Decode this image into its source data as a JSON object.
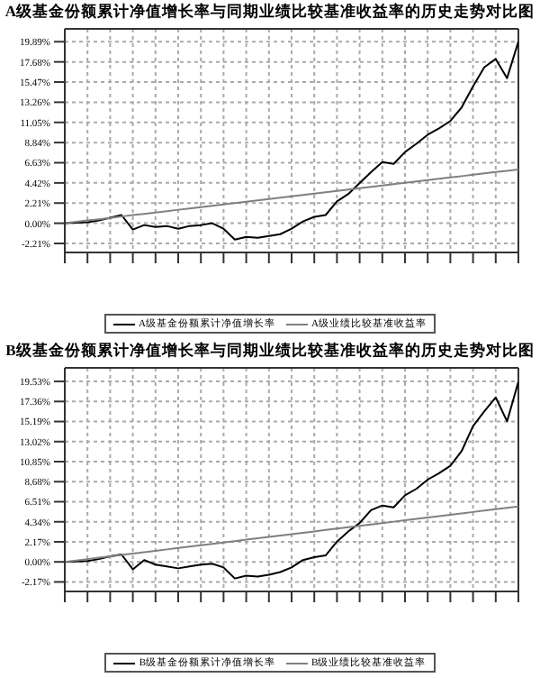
{
  "chart_data": [
    {
      "type": "line",
      "title": "A级基金份额累计净值增长率与同期业绩比较基准收益率的历史走势对比图",
      "categories": [
        null,
        null,
        null,
        null,
        null,
        null,
        null,
        null,
        null,
        null,
        null,
        null,
        null,
        null,
        null,
        null,
        null,
        null,
        null,
        null,
        null,
        null,
        null,
        null,
        null,
        null,
        null,
        null,
        null,
        null,
        null,
        null,
        null,
        null,
        null,
        null,
        null,
        null,
        null,
        null,
        null
      ],
      "ylim": [
        -3.2,
        21.3
      ],
      "yticks": [
        {
          "value": -2.21,
          "label": "-2.21%"
        },
        {
          "value": 0,
          "label": "0.00%"
        },
        {
          "value": 2.21,
          "label": "2.21%"
        },
        {
          "value": 4.42,
          "label": "4.42%"
        },
        {
          "value": 6.63,
          "label": "6.63%"
        },
        {
          "value": 8.84,
          "label": "8.84%"
        },
        {
          "value": 11.05,
          "label": "11.05%"
        },
        {
          "value": 13.26,
          "label": "13.26%"
        },
        {
          "value": 15.47,
          "label": "15.47%"
        },
        {
          "value": 17.68,
          "label": "17.68%"
        },
        {
          "value": 19.89,
          "label": "19.89%"
        }
      ],
      "grid": true,
      "legend": "bottom",
      "series": [
        {
          "name": "A级基金份额累计净值增长率",
          "color": "#000000",
          "values": [
            0,
            0.05,
            0.1,
            0.3,
            0.6,
            0.9,
            -0.7,
            -0.2,
            -0.4,
            -0.3,
            -0.6,
            -0.3,
            -0.2,
            0,
            -0.6,
            -1.8,
            -1.5,
            -1.6,
            -1.4,
            -1.2,
            -0.6,
            0.2,
            0.7,
            0.9,
            2.4,
            3.2,
            4.4,
            5.6,
            6.7,
            6.5,
            7.8,
            8.7,
            9.7,
            10.4,
            11.2,
            12.7,
            15,
            17.1,
            18,
            15.9,
            19.9
          ]
        },
        {
          "name": "A级业绩比较基准收益率",
          "color": "#808080",
          "values": [
            0,
            0.15,
            0.3,
            0.44,
            0.59,
            0.74,
            0.89,
            1.03,
            1.18,
            1.33,
            1.48,
            1.62,
            1.77,
            1.92,
            2.07,
            2.21,
            2.36,
            2.51,
            2.66,
            2.8,
            2.95,
            3.1,
            3.25,
            3.39,
            3.54,
            3.69,
            3.84,
            3.98,
            4.13,
            4.28,
            4.43,
            4.57,
            4.72,
            4.87,
            5.02,
            5.16,
            5.31,
            5.46,
            5.61,
            5.75,
            5.9
          ]
        }
      ]
    },
    {
      "type": "line",
      "title": "B级基金份额累计净值增长率与同期业绩比较基准收益率的历史走势对比图",
      "categories": [
        null,
        null,
        null,
        null,
        null,
        null,
        null,
        null,
        null,
        null,
        null,
        null,
        null,
        null,
        null,
        null,
        null,
        null,
        null,
        null,
        null,
        null,
        null,
        null,
        null,
        null,
        null,
        null,
        null,
        null,
        null,
        null,
        null,
        null,
        null,
        null,
        null,
        null,
        null,
        null,
        null
      ],
      "ylim": [
        -3.2,
        21
      ],
      "yticks": [
        {
          "value": -2.17,
          "label": "-2.17%"
        },
        {
          "value": 0,
          "label": "0.00%"
        },
        {
          "value": 2.17,
          "label": "2.17%"
        },
        {
          "value": 4.34,
          "label": "4.34%"
        },
        {
          "value": 6.51,
          "label": "6.51%"
        },
        {
          "value": 8.68,
          "label": "8.68%"
        },
        {
          "value": 10.85,
          "label": "10.85%"
        },
        {
          "value": 13.02,
          "label": "13.02%"
        },
        {
          "value": 15.19,
          "label": "15.19%"
        },
        {
          "value": 17.36,
          "label": "17.36%"
        },
        {
          "value": 19.53,
          "label": "19.53%"
        }
      ],
      "grid": true,
      "legend": "bottom",
      "series": [
        {
          "name": "B级基金份额累计净值增长率",
          "color": "#000000",
          "values": [
            0,
            0.05,
            0.1,
            0.3,
            0.6,
            0.8,
            -0.8,
            0.2,
            -0.3,
            -0.5,
            -0.7,
            -0.5,
            -0.3,
            -0.2,
            -0.6,
            -1.8,
            -1.5,
            -1.6,
            -1.4,
            -1.1,
            -0.6,
            0.2,
            0.5,
            0.7,
            2.2,
            3.3,
            4.2,
            5.6,
            6.1,
            5.9,
            7.2,
            7.9,
            8.9,
            9.6,
            10.4,
            12,
            14.7,
            16.3,
            17.8,
            15.2,
            19.5
          ]
        },
        {
          "name": "B级业绩比较基准收益率",
          "color": "#808080",
          "values": [
            0,
            0.15,
            0.3,
            0.45,
            0.6,
            0.75,
            0.9,
            1.05,
            1.2,
            1.35,
            1.5,
            1.65,
            1.8,
            1.95,
            2.1,
            2.25,
            2.4,
            2.55,
            2.7,
            2.85,
            3,
            3.15,
            3.3,
            3.45,
            3.6,
            3.75,
            3.9,
            4.05,
            4.2,
            4.35,
            4.5,
            4.65,
            4.8,
            4.95,
            5.1,
            5.25,
            5.4,
            5.55,
            5.7,
            5.85,
            6
          ]
        }
      ]
    }
  ]
}
